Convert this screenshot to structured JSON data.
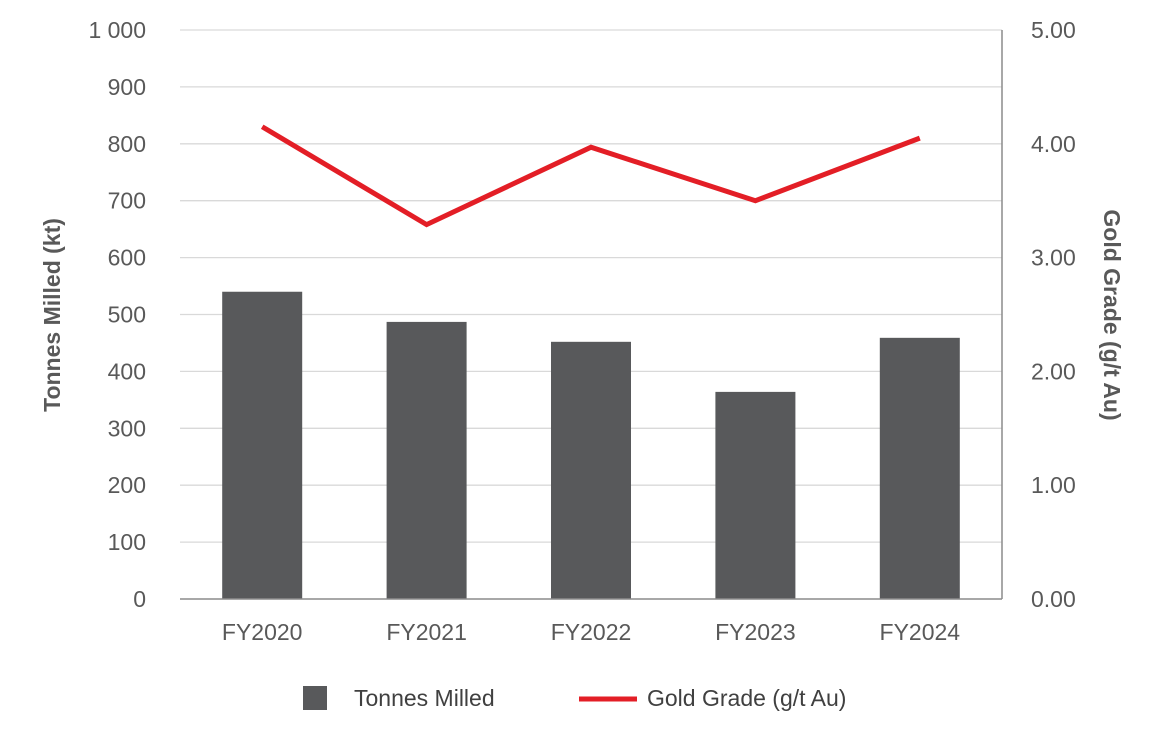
{
  "chart_data": {
    "type": "bar",
    "categories": [
      "FY2020",
      "FY2021",
      "FY2022",
      "FY2023",
      "FY2024"
    ],
    "series": [
      {
        "name": "Tonnes Milled",
        "type": "bar",
        "axis": "left",
        "color": "#58595b",
        "values": [
          540,
          487,
          452,
          364,
          459
        ]
      },
      {
        "name": "Gold Grade (g/t Au)",
        "type": "line",
        "axis": "right",
        "color": "#e31e26",
        "values": [
          4.15,
          3.29,
          3.97,
          3.5,
          4.05
        ]
      }
    ],
    "ylabel": "Tonnes Milled (kt)",
    "y2label": "Gold Grade (g/t Au)",
    "ylim": [
      0,
      1000
    ],
    "y2lim": [
      0,
      5
    ],
    "yticks": [
      "0",
      "100",
      "200",
      "300",
      "400",
      "500",
      "600",
      "700",
      "800",
      "900",
      "1 000"
    ],
    "y2ticks": [
      "0.00",
      "1.00",
      "2.00",
      "3.00",
      "4.00",
      "5.00"
    ],
    "grid": true,
    "legend_position": "bottom"
  }
}
